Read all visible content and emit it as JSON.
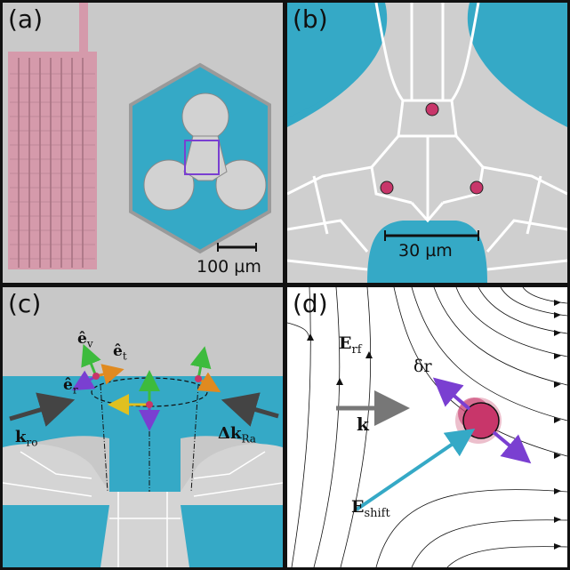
{
  "panels": {
    "a": {
      "label": "(a)",
      "scale_bar": "100 µm"
    },
    "b": {
      "label": "(b)",
      "scale_bar": "30 µm"
    },
    "c": {
      "label": "(c)",
      "vectors": {
        "ev": "ê",
        "ev_sub": "v",
        "et": "ê",
        "et_sub": "t",
        "er": "ê",
        "er_sub": "r"
      },
      "k_ro": "k",
      "k_ro_sub": "ro",
      "dk_ra": "Δk",
      "dk_ra_sub": "Ra"
    },
    "d": {
      "label": "(d)",
      "E_rf": "E",
      "E_rf_sub": "rf",
      "k": "k",
      "dr": "δr",
      "E_shift": "E",
      "E_shift_sub": "shift"
    }
  },
  "colors": {
    "teal": "#35a9c6",
    "electrode": "#d2d2d2",
    "ion": "#c8366a",
    "pink_wire": "#d59aab",
    "purple": "#7a3fd1",
    "frame": "#111111"
  }
}
